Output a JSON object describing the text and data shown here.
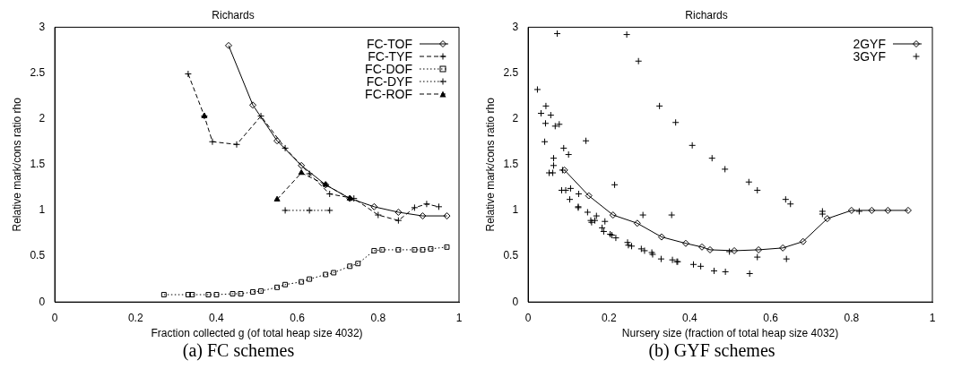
{
  "chart_data": [
    {
      "type": "line",
      "title": "Richards",
      "xlabel": "Fraction collected g (of total heap size 4032)",
      "ylabel": "Relative mark/cons ratio rho",
      "annotations": [
        "(a) FC schemes"
      ],
      "xlim": [
        0,
        1
      ],
      "xticks": [
        0,
        0.2,
        0.4,
        0.6,
        0.8,
        1
      ],
      "ylim": [
        0,
        3
      ],
      "yticks": [
        0,
        0.5,
        1,
        1.5,
        2,
        2.5,
        3
      ],
      "grid": false,
      "legend": "top right",
      "series": [
        {
          "name": "FC-TOF",
          "color": "#000000",
          "marker": "diamond",
          "line_style": "solid",
          "x": [
            0.43,
            0.49,
            0.55,
            0.61,
            0.67,
            0.73,
            0.79,
            0.85,
            0.91,
            0.97
          ],
          "values": [
            2.8,
            2.15,
            1.76,
            1.49,
            1.28,
            1.13,
            1.04,
            0.98,
            0.94,
            0.94
          ]
        },
        {
          "name": "FC-TYF",
          "color": "#000000",
          "marker": "cross",
          "line_style": "dashed",
          "x": [
            0.33,
            0.37,
            0.39,
            0.45,
            0.51,
            0.57,
            0.63,
            0.68,
            0.74,
            0.8,
            0.85,
            0.89,
            0.92,
            0.95
          ],
          "values": [
            2.49,
            2.03,
            1.75,
            1.72,
            2.03,
            1.68,
            1.4,
            1.18,
            1.13,
            0.95,
            0.89,
            1.03,
            1.07,
            1.04
          ]
        },
        {
          "name": "FC-DOF",
          "color": "#000000",
          "marker": "square",
          "line_style": "dotted",
          "x": [
            0.27,
            0.33,
            0.34,
            0.38,
            0.4,
            0.44,
            0.46,
            0.49,
            0.51,
            0.55,
            0.57,
            0.61,
            0.63,
            0.67,
            0.69,
            0.73,
            0.75,
            0.79,
            0.81,
            0.85,
            0.89,
            0.91,
            0.93,
            0.97
          ],
          "values": [
            0.08,
            0.08,
            0.08,
            0.08,
            0.08,
            0.09,
            0.09,
            0.11,
            0.12,
            0.16,
            0.19,
            0.22,
            0.25,
            0.3,
            0.32,
            0.39,
            0.42,
            0.56,
            0.57,
            0.57,
            0.57,
            0.57,
            0.58,
            0.6
          ]
        },
        {
          "name": "FC-DYF",
          "color": "#000000",
          "marker": "cross",
          "line_style": "dotted",
          "x": [
            0.57,
            0.63,
            0.68
          ],
          "values": [
            1.0,
            1.0,
            1.0
          ]
        },
        {
          "name": "FC-ROF",
          "color": "#000000",
          "marker": "triangle",
          "line_style": "dashed",
          "x": [
            0.37,
            0.46,
            0.55,
            0.61,
            0.67,
            0.73
          ],
          "values": [
            2.03,
            null,
            1.12,
            1.41,
            1.28,
            1.13
          ]
        }
      ]
    },
    {
      "type": "line",
      "title": "Richards",
      "xlabel": "Nursery size (fraction of total heap size 4032)",
      "ylabel": "Relative mark/cons ratio rho",
      "annotations": [
        "(b) GYF schemes"
      ],
      "xlim": [
        0,
        1
      ],
      "xticks": [
        0,
        0.2,
        0.4,
        0.6,
        0.8,
        1
      ],
      "ylim": [
        0,
        3
      ],
      "yticks": [
        0,
        0.5,
        1,
        1.5,
        2,
        2.5,
        3
      ],
      "grid": false,
      "legend": "top right",
      "series": [
        {
          "name": "2GYF",
          "color": "#000000",
          "marker": "diamond",
          "line_style": "solid",
          "x": [
            0.09,
            0.15,
            0.21,
            0.27,
            0.33,
            0.39,
            0.43,
            0.45,
            0.51,
            0.57,
            0.63,
            0.68,
            0.74,
            0.8,
            0.85,
            0.89,
            0.94
          ],
          "values": [
            1.44,
            1.16,
            0.95,
            0.86,
            0.71,
            0.64,
            0.6,
            0.57,
            0.56,
            0.57,
            0.59,
            0.66,
            0.91,
            1.0,
            1.0,
            1.0,
            1.0
          ]
        },
        {
          "name": "3GYF",
          "type": "scatter",
          "color": "#000000",
          "marker": "cross",
          "x": [
            0.023,
            0.032,
            0.044,
            0.056,
            0.043,
            0.067,
            0.077,
            0.072,
            0.041,
            0.063,
            0.063,
            0.052,
            0.061,
            0.088,
            0.1,
            0.085,
            0.083,
            0.093,
            0.105,
            0.103,
            0.143,
            0.125,
            0.124,
            0.124,
            0.147,
            0.169,
            0.155,
            0.157,
            0.165,
            0.19,
            0.183,
            0.187,
            0.203,
            0.207,
            0.217,
            0.214,
            0.244,
            0.273,
            0.284,
            0.246,
            0.248,
            0.256,
            0.28,
            0.288,
            0.306,
            0.308,
            0.325,
            0.365,
            0.406,
            0.329,
            0.355,
            0.357,
            0.368,
            0.37,
            0.409,
            0.427,
            0.455,
            0.487,
            0.546,
            0.567,
            0.637,
            0.649,
            0.728,
            0.728,
            0.46,
            0.488,
            0.548,
            0.567,
            0.639,
            0.498,
            0.819
          ],
          "values": [
            2.32,
            2.06,
            2.14,
            2.04,
            1.95,
            1.92,
            1.94,
            2.93,
            1.75,
            1.57,
            1.49,
            1.41,
            1.41,
            1.68,
            1.61,
            1.44,
            1.22,
            1.22,
            1.24,
            1.12,
            1.76,
            1.18,
            1.04,
            1.03,
            0.98,
            0.94,
            0.89,
            0.87,
            0.89,
            0.88,
            0.81,
            0.77,
            0.74,
            0.73,
            0.7,
            1.28,
            2.92,
            2.63,
            0.95,
            0.65,
            0.62,
            0.61,
            0.58,
            0.56,
            0.54,
            0.52,
            2.14,
            1.96,
            1.71,
            0.47,
            0.95,
            0.46,
            0.44,
            0.44,
            0.41,
            0.39,
            1.57,
            1.45,
            1.31,
            1.22,
            1.12,
            1.07,
            0.99,
            0.96,
            0.34,
            0.33,
            0.31,
            0.49,
            0.47,
            0.55,
            0.99
          ]
        }
      ]
    }
  ]
}
